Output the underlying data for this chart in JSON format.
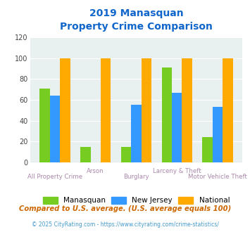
{
  "title_line1": "2019 Manasquan",
  "title_line2": "Property Crime Comparison",
  "categories": [
    "All Property Crime",
    "Arson",
    "Burglary",
    "Larceny & Theft",
    "Motor Vehicle Theft"
  ],
  "manasquan": [
    71,
    15,
    15,
    91,
    24
  ],
  "new_jersey": [
    64,
    0,
    55,
    67,
    53
  ],
  "national": [
    100,
    100,
    100,
    100,
    100
  ],
  "colors": {
    "manasquan": "#77cc22",
    "new_jersey": "#3399ff",
    "national": "#ffaa00"
  },
  "ylim": [
    0,
    120
  ],
  "yticks": [
    0,
    20,
    40,
    60,
    80,
    100,
    120
  ],
  "bg_color": "#e8f0f0",
  "title_color": "#1166cc",
  "xlabel_color": "#aa88aa",
  "footer_color": "#cc6600",
  "credit_color": "#4499cc",
  "footer_text": "Compared to U.S. average. (U.S. average equals 100)",
  "credit_text": "© 2025 CityRating.com - https://www.cityrating.com/crime-statistics/",
  "legend_labels": [
    "Manasquan",
    "New Jersey",
    "National"
  ],
  "label_row": [
    1,
    0,
    1,
    0,
    1
  ]
}
